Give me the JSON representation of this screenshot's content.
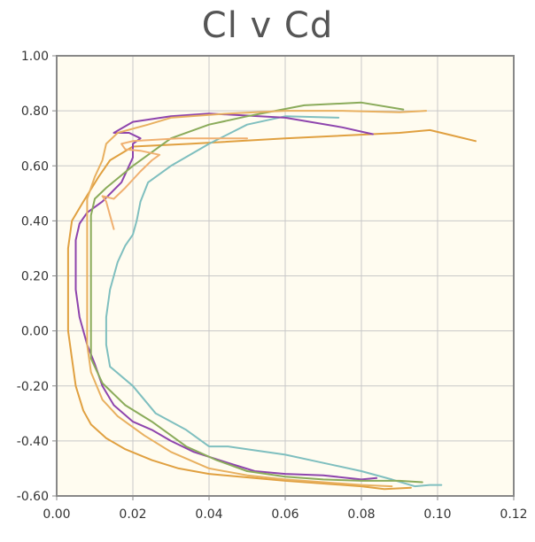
{
  "chart_data": {
    "type": "line",
    "title": "Cl v Cd",
    "xlabel": "",
    "ylabel": "",
    "xlim": [
      0,
      0.12
    ],
    "ylim": [
      -0.6,
      1.0
    ],
    "x_ticks": [
      "0.00",
      "0.02",
      "0.04",
      "0.06",
      "0.08",
      "0.10",
      "0.12"
    ],
    "y_ticks": [
      "1.00",
      "0.80",
      "0.60",
      "0.40",
      "0.20",
      "0.00",
      "-0.20",
      "-0.40",
      "-0.60"
    ],
    "x_tick_values": [
      0,
      0.02,
      0.04,
      0.06,
      0.08,
      0.1,
      0.12
    ],
    "y_tick_values": [
      1.0,
      0.8,
      0.6,
      0.4,
      0.2,
      0.0,
      -0.2,
      -0.4,
      -0.6
    ],
    "grid": true,
    "legend": "none",
    "plot_background": "#fffcf0",
    "series": [
      {
        "color": "#e0a040",
        "points": [
          [
            0.093,
            -0.57
          ],
          [
            0.086,
            -0.575
          ],
          [
            0.08,
            -0.565
          ],
          [
            0.07,
            -0.555
          ],
          [
            0.06,
            -0.545
          ],
          [
            0.048,
            -0.53
          ],
          [
            0.04,
            -0.52
          ],
          [
            0.032,
            -0.5
          ],
          [
            0.025,
            -0.47
          ],
          [
            0.018,
            -0.43
          ],
          [
            0.013,
            -0.39
          ],
          [
            0.009,
            -0.34
          ],
          [
            0.007,
            -0.29
          ],
          [
            0.005,
            -0.2
          ],
          [
            0.004,
            -0.1
          ],
          [
            0.003,
            0.0
          ],
          [
            0.003,
            0.1
          ],
          [
            0.003,
            0.2
          ],
          [
            0.003,
            0.3
          ],
          [
            0.004,
            0.4
          ],
          [
            0.007,
            0.47
          ],
          [
            0.011,
            0.56
          ],
          [
            0.014,
            0.62
          ],
          [
            0.02,
            0.67
          ],
          [
            0.035,
            0.68
          ],
          [
            0.06,
            0.7
          ],
          [
            0.09,
            0.72
          ],
          [
            0.098,
            0.73
          ],
          [
            0.11,
            0.69
          ]
        ]
      },
      {
        "color": "#7fbfbf",
        "points": [
          [
            0.101,
            -0.56
          ],
          [
            0.098,
            -0.56
          ],
          [
            0.094,
            -0.565
          ],
          [
            0.088,
            -0.54
          ],
          [
            0.08,
            -0.51
          ],
          [
            0.07,
            -0.48
          ],
          [
            0.06,
            -0.45
          ],
          [
            0.05,
            -0.43
          ],
          [
            0.045,
            -0.42
          ],
          [
            0.04,
            -0.42
          ],
          [
            0.034,
            -0.36
          ],
          [
            0.026,
            -0.3
          ],
          [
            0.02,
            -0.2
          ],
          [
            0.014,
            -0.13
          ],
          [
            0.013,
            -0.05
          ],
          [
            0.013,
            0.05
          ],
          [
            0.014,
            0.15
          ],
          [
            0.016,
            0.25
          ],
          [
            0.018,
            0.31
          ],
          [
            0.02,
            0.35
          ],
          [
            0.021,
            0.4
          ],
          [
            0.022,
            0.47
          ],
          [
            0.024,
            0.54
          ],
          [
            0.03,
            0.6
          ],
          [
            0.04,
            0.68
          ],
          [
            0.05,
            0.75
          ],
          [
            0.06,
            0.78
          ],
          [
            0.074,
            0.775
          ]
        ]
      },
      {
        "color": "#8e44ad",
        "points": [
          [
            0.084,
            -0.535
          ],
          [
            0.08,
            -0.54
          ],
          [
            0.07,
            -0.525
          ],
          [
            0.06,
            -0.52
          ],
          [
            0.052,
            -0.51
          ],
          [
            0.045,
            -0.48
          ],
          [
            0.036,
            -0.44
          ],
          [
            0.03,
            -0.4
          ],
          [
            0.025,
            -0.36
          ],
          [
            0.02,
            -0.33
          ],
          [
            0.015,
            -0.27
          ],
          [
            0.012,
            -0.2
          ],
          [
            0.01,
            -0.12
          ],
          [
            0.008,
            -0.05
          ],
          [
            0.006,
            0.05
          ],
          [
            0.005,
            0.15
          ],
          [
            0.005,
            0.25
          ],
          [
            0.005,
            0.33
          ],
          [
            0.006,
            0.39
          ],
          [
            0.008,
            0.43
          ],
          [
            0.01,
            0.45
          ],
          [
            0.012,
            0.47
          ],
          [
            0.017,
            0.54
          ],
          [
            0.02,
            0.63
          ],
          [
            0.02,
            0.68
          ],
          [
            0.022,
            0.7
          ],
          [
            0.019,
            0.72
          ],
          [
            0.015,
            0.72
          ],
          [
            0.02,
            0.76
          ],
          [
            0.03,
            0.78
          ],
          [
            0.04,
            0.79
          ],
          [
            0.06,
            0.775
          ],
          [
            0.075,
            0.74
          ],
          [
            0.083,
            0.715
          ]
        ]
      },
      {
        "color": "#8aab5a",
        "points": [
          [
            0.096,
            -0.55
          ],
          [
            0.09,
            -0.545
          ],
          [
            0.08,
            -0.545
          ],
          [
            0.07,
            -0.54
          ],
          [
            0.06,
            -0.53
          ],
          [
            0.05,
            -0.51
          ],
          [
            0.042,
            -0.47
          ],
          [
            0.034,
            -0.42
          ],
          [
            0.025,
            -0.33
          ],
          [
            0.018,
            -0.27
          ],
          [
            0.012,
            -0.19
          ],
          [
            0.009,
            -0.1
          ],
          [
            0.009,
            0.0
          ],
          [
            0.009,
            0.2
          ],
          [
            0.009,
            0.42
          ],
          [
            0.01,
            0.48
          ],
          [
            0.013,
            0.52
          ],
          [
            0.02,
            0.6
          ],
          [
            0.03,
            0.7
          ],
          [
            0.04,
            0.75
          ],
          [
            0.05,
            0.78
          ],
          [
            0.065,
            0.82
          ],
          [
            0.08,
            0.83
          ],
          [
            0.091,
            0.805
          ]
        ]
      },
      {
        "color": "#e8b060",
        "points": [
          [
            0.088,
            -0.565
          ],
          [
            0.08,
            -0.56
          ],
          [
            0.07,
            -0.55
          ],
          [
            0.06,
            -0.54
          ],
          [
            0.05,
            -0.525
          ],
          [
            0.04,
            -0.5
          ],
          [
            0.03,
            -0.44
          ],
          [
            0.023,
            -0.38
          ],
          [
            0.016,
            -0.31
          ],
          [
            0.012,
            -0.25
          ],
          [
            0.009,
            -0.15
          ],
          [
            0.008,
            -0.05
          ],
          [
            0.008,
            0.1
          ],
          [
            0.008,
            0.25
          ],
          [
            0.008,
            0.4
          ],
          [
            0.008,
            0.48
          ],
          [
            0.01,
            0.56
          ],
          [
            0.012,
            0.62
          ],
          [
            0.013,
            0.68
          ],
          [
            0.016,
            0.72
          ],
          [
            0.024,
            0.75
          ],
          [
            0.03,
            0.775
          ],
          [
            0.045,
            0.79
          ],
          [
            0.06,
            0.8
          ],
          [
            0.075,
            0.8
          ],
          [
            0.09,
            0.795
          ],
          [
            0.097,
            0.8
          ]
        ]
      },
      {
        "color": "#f0b070",
        "points": [
          [
            0.015,
            0.37
          ],
          [
            0.014,
            0.42
          ],
          [
            0.013,
            0.47
          ],
          [
            0.012,
            0.49
          ],
          [
            0.015,
            0.48
          ],
          [
            0.018,
            0.52
          ],
          [
            0.022,
            0.58
          ],
          [
            0.025,
            0.62
          ],
          [
            0.027,
            0.64
          ],
          [
            0.022,
            0.655
          ],
          [
            0.018,
            0.66
          ],
          [
            0.017,
            0.68
          ],
          [
            0.02,
            0.69
          ],
          [
            0.032,
            0.7
          ],
          [
            0.05,
            0.7
          ]
        ]
      }
    ]
  }
}
